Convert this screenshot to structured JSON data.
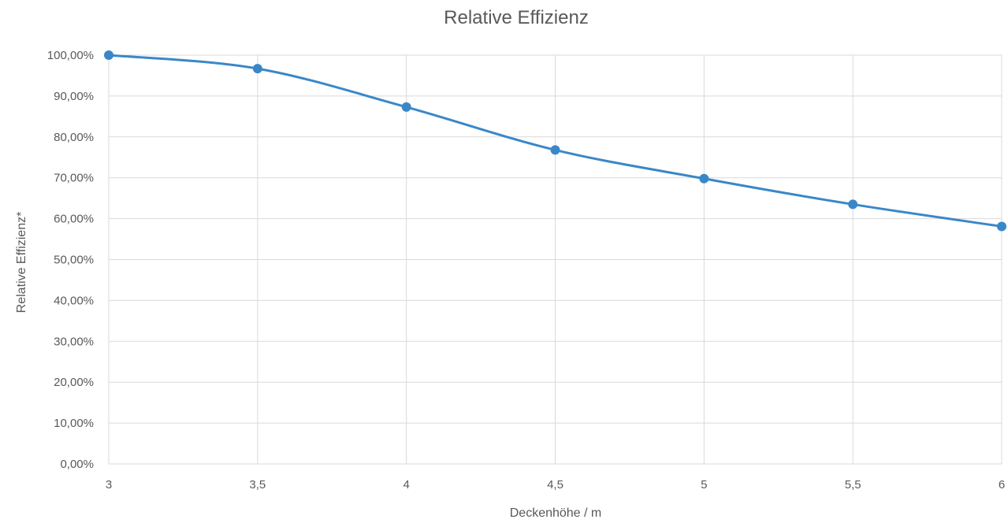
{
  "chart_data": {
    "type": "line",
    "title": "Relative Effizienz",
    "xlabel": "Deckenhöhe / m",
    "ylabel": "Relative Effizienz*",
    "x": [
      3,
      3.5,
      4,
      4.5,
      5,
      5.5,
      6
    ],
    "x_tick_labels": [
      "3",
      "3,5",
      "4",
      "4,5",
      "5",
      "5,5",
      "6"
    ],
    "y_tick_labels": [
      "0,00%",
      "10,00%",
      "20,00%",
      "30,00%",
      "40,00%",
      "50,00%",
      "60,00%",
      "70,00%",
      "80,00%",
      "90,00%",
      "100,00%"
    ],
    "xlim": [
      3,
      6
    ],
    "ylim": [
      0,
      100
    ],
    "grid": true,
    "smooth": true,
    "series": [
      {
        "values": [
          100,
          96.7,
          87.3,
          76.8,
          69.8,
          63.5,
          58.1
        ],
        "color": "#3a87c8"
      }
    ]
  }
}
